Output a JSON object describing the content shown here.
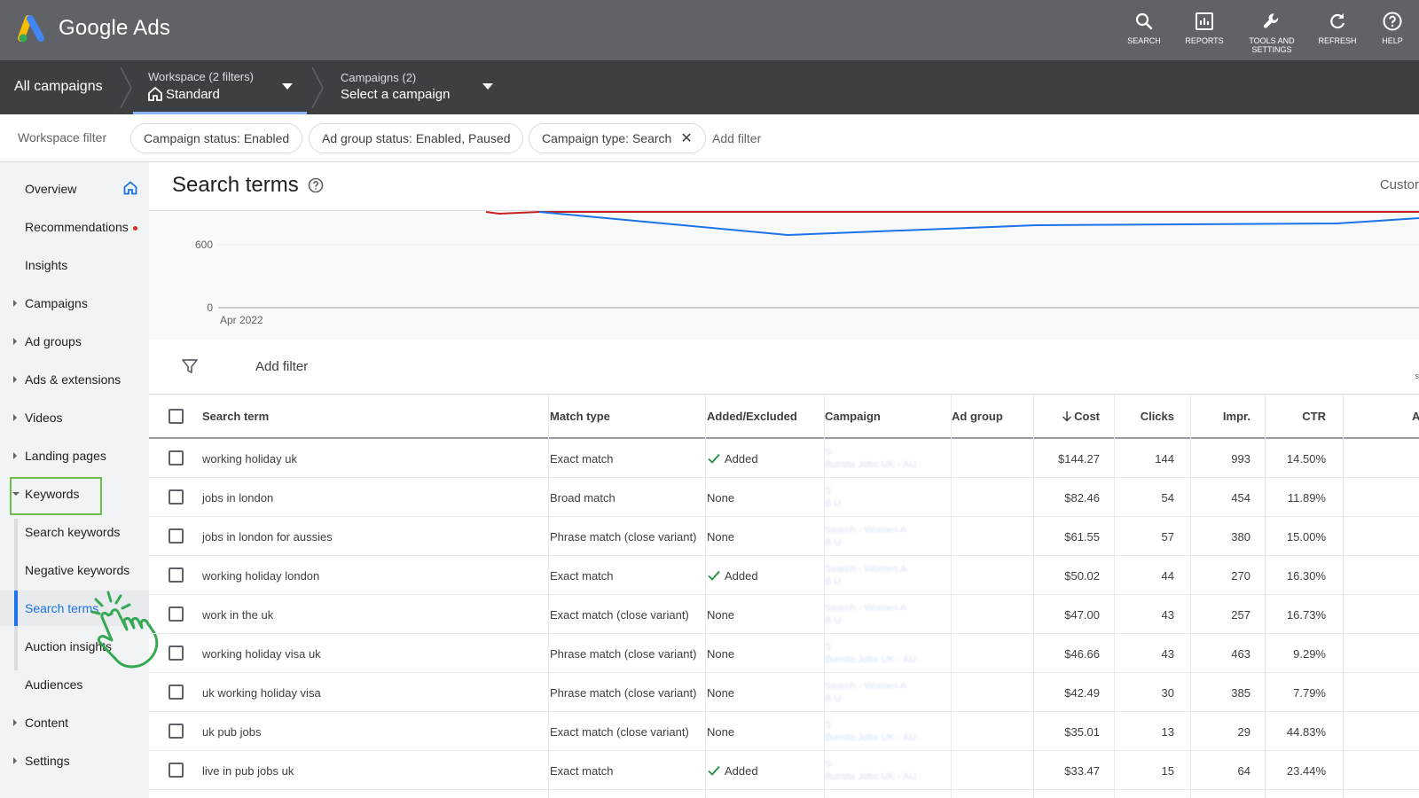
{
  "app": {
    "brand": "Google Ads",
    "tools": [
      {
        "label": "SEARCH",
        "icon": "search-icon"
      },
      {
        "label": "REPORTS",
        "icon": "reports-icon"
      },
      {
        "label": "TOOLS AND SETTINGS",
        "icon": "wrench-icon"
      },
      {
        "label": "REFRESH",
        "icon": "refresh-icon"
      },
      {
        "label": "HELP",
        "icon": "help-icon"
      }
    ]
  },
  "breadcrumb": {
    "all": "All campaigns",
    "workspace_small": "Workspace (2 filters)",
    "workspace_big": "Standard",
    "campaigns_small": "Campaigns (2)",
    "campaigns_big": "Select a campaign"
  },
  "filters": {
    "label": "Workspace filter",
    "chips": [
      "Campaign status: Enabled",
      "Ad group status: Enabled, Paused",
      "Campaign type: Search"
    ],
    "add": "Add filter"
  },
  "sidebar": {
    "items": [
      {
        "label": "Overview"
      },
      {
        "label": "Recommendations"
      },
      {
        "label": "Insights"
      },
      {
        "label": "Campaigns"
      },
      {
        "label": "Ad groups"
      },
      {
        "label": "Ads & extensions"
      },
      {
        "label": "Videos"
      },
      {
        "label": "Landing pages"
      },
      {
        "label": "Keywords"
      },
      {
        "label": "Search keywords"
      },
      {
        "label": "Negative keywords"
      },
      {
        "label": "Search terms"
      },
      {
        "label": "Auction insights"
      },
      {
        "label": "Audiences"
      },
      {
        "label": "Content"
      },
      {
        "label": "Settings"
      }
    ]
  },
  "page": {
    "title": "Search terms",
    "custom": "Custor",
    "chart": {
      "y_ticks": [
        "600",
        "0"
      ],
      "x_label": "Apr 2022"
    },
    "add_filter": "Add filter",
    "edge_mark": "s"
  },
  "table": {
    "columns": [
      "Search term",
      "Match type",
      "Added/Excluded",
      "Campaign",
      "Ad group",
      "Cost",
      "Clicks",
      "Impr.",
      "CTR",
      "A"
    ],
    "rows": [
      {
        "term": "working holiday uk",
        "match": "Exact match",
        "added": "Added",
        "campaign": [
          "S",
          "Bunsta Jobs UK - AU"
        ],
        "cost": "$144.27",
        "clicks": "144",
        "impr": "993",
        "ctr": "14.50%"
      },
      {
        "term": "jobs in london",
        "match": "Broad match",
        "added": "None",
        "campaign": [
          "S",
          "B                           U"
        ],
        "cost": "$82.46",
        "clicks": "54",
        "impr": "454",
        "ctr": "11.89%"
      },
      {
        "term": "jobs in london for aussies",
        "match": "Phrase match (close variant)",
        "added": "None",
        "campaign": [
          "Search - Women A",
          "B                           U"
        ],
        "cost": "$61.55",
        "clicks": "57",
        "impr": "380",
        "ctr": "15.00%"
      },
      {
        "term": "working holiday london",
        "match": "Exact match",
        "added": "Added",
        "campaign": [
          "Search - Women A",
          "B                           U"
        ],
        "cost": "$50.02",
        "clicks": "44",
        "impr": "270",
        "ctr": "16.30%"
      },
      {
        "term": "work in the uk",
        "match": "Exact match (close variant)",
        "added": "None",
        "campaign": [
          "Search - Women A",
          "B                           U"
        ],
        "cost": "$47.00",
        "clicks": "43",
        "impr": "257",
        "ctr": "16.73%"
      },
      {
        "term": "working holiday visa uk",
        "match": "Phrase match (close variant)",
        "added": "None",
        "campaign": [
          "S",
          "Bunsta Jobs UK - AU"
        ],
        "cost": "$46.66",
        "clicks": "43",
        "impr": "463",
        "ctr": "9.29%"
      },
      {
        "term": "uk working holiday visa",
        "match": "Phrase match (close variant)",
        "added": "None",
        "campaign": [
          "Search - Women A",
          "B                           U"
        ],
        "cost": "$42.49",
        "clicks": "30",
        "impr": "385",
        "ctr": "7.79%"
      },
      {
        "term": "uk pub jobs",
        "match": "Exact match (close variant)",
        "added": "None",
        "campaign": [
          "S",
          "Bunsta Jobs UK - AU"
        ],
        "cost": "$35.01",
        "clicks": "13",
        "impr": "29",
        "ctr": "44.83%"
      },
      {
        "term": "live in pub jobs uk",
        "match": "Exact match",
        "added": "Added",
        "campaign": [
          "S",
          "Bunsta Jobs UK - AU"
        ],
        "cost": "$33.47",
        "clicks": "15",
        "impr": "64",
        "ctr": "23.44%"
      }
    ]
  },
  "colors": {
    "accent": "#1a73e8",
    "highlight": "#6cc04a",
    "topbar": "#5f6368",
    "crumbbar": "#3c4043"
  }
}
